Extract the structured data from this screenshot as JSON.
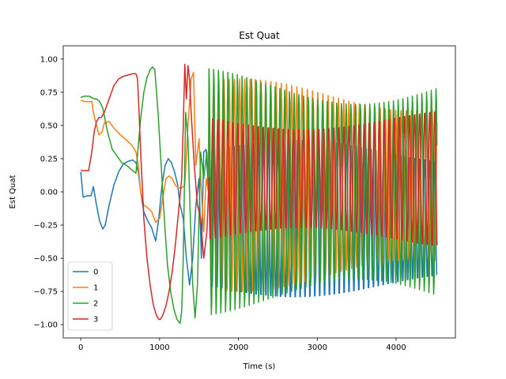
{
  "chart_data": {
    "type": "line",
    "title": "Est Quat",
    "xlabel": "Time (s)",
    "ylabel": "Est Quat",
    "xlim": [
      -222,
      4752
    ],
    "ylim": [
      -1.1,
      1.1
    ],
    "xticks": [
      0,
      1000,
      2000,
      3000,
      4000
    ],
    "xtick_labels": [
      "0",
      "1000",
      "2000",
      "3000",
      "4000"
    ],
    "yticks": [
      -1.0,
      -0.75,
      -0.5,
      -0.25,
      0.0,
      0.25,
      0.5,
      0.75,
      1.0
    ],
    "ytick_labels": [
      "−1.00",
      "−0.75",
      "−0.50",
      "−0.25",
      "0.00",
      "0.25",
      "0.50",
      "0.75",
      "1.00"
    ],
    "grid": false,
    "legend": "lower-left",
    "series": [
      {
        "name": "0",
        "color": "#1f77b4",
        "x": [
          0,
          30,
          80,
          130,
          160,
          200,
          240,
          280,
          310,
          360,
          420,
          480,
          540,
          600,
          660,
          700,
          730,
          760,
          800,
          850,
          900,
          950,
          990,
          1030,
          1070,
          1110,
          1150,
          1190,
          1230,
          1260,
          1300,
          1340,
          1380,
          1420,
          1460,
          1500,
          1530,
          1560,
          1590,
          1620
        ],
        "y": [
          0.15,
          -0.04,
          -0.03,
          -0.03,
          0.04,
          -0.1,
          -0.22,
          -0.28,
          -0.25,
          -0.1,
          0.05,
          0.15,
          0.21,
          0.23,
          0.24,
          0.22,
          0.15,
          0.0,
          -0.15,
          -0.22,
          -0.27,
          -0.37,
          -0.2,
          0.05,
          0.2,
          0.25,
          0.22,
          0.15,
          0.05,
          -0.1,
          -0.2,
          -0.5,
          -0.7,
          -0.5,
          -0.1,
          0.1,
          -0.5,
          0.3,
          0.32,
          0.0
        ],
        "osc": {
          "x_start": 1620,
          "x_end": 4520,
          "period": 62,
          "amplitude": 0.62,
          "center": -0.2,
          "phase": 0.0
        }
      },
      {
        "name": "1",
        "color": "#ff7f0e",
        "x": [
          0,
          50,
          100,
          140,
          160,
          200,
          230,
          270,
          300,
          360,
          420,
          500,
          580,
          650,
          700,
          730,
          760,
          800,
          850,
          900,
          950,
          1000,
          1040,
          1080,
          1120,
          1160,
          1200,
          1240,
          1280,
          1320,
          1360,
          1400,
          1430,
          1460,
          1500,
          1530,
          1560,
          1590,
          1620
        ],
        "y": [
          0.69,
          0.68,
          0.68,
          0.68,
          0.6,
          0.5,
          0.43,
          0.45,
          0.52,
          0.53,
          0.48,
          0.43,
          0.39,
          0.35,
          0.3,
          0.2,
          0.0,
          -0.1,
          -0.12,
          -0.15,
          -0.23,
          -0.2,
          -0.05,
          0.1,
          0.12,
          0.1,
          0.05,
          0.03,
          0.03,
          0.05,
          0.5,
          0.85,
          0.9,
          0.2,
          0.4,
          0.0,
          -0.3,
          0.1,
          0.0
        ],
        "osc": {
          "x_start": 1620,
          "x_end": 4520,
          "period": 66,
          "amplitude": 0.8,
          "center": 0.05,
          "phase": 1.6
        }
      },
      {
        "name": "2",
        "color": "#2ca02c",
        "x": [
          0,
          40,
          80,
          110,
          140,
          170,
          200,
          240,
          280,
          340,
          400,
          460,
          520,
          580,
          640,
          700,
          730,
          760,
          800,
          840,
          880,
          910,
          940,
          980,
          1020,
          1060,
          1100,
          1140,
          1180,
          1220,
          1260,
          1280,
          1300,
          1330,
          1360,
          1390,
          1420,
          1450,
          1480,
          1520,
          1560,
          1600,
          1620
        ],
        "y": [
          0.71,
          0.72,
          0.72,
          0.72,
          0.71,
          0.7,
          0.7,
          0.68,
          0.63,
          0.45,
          0.32,
          0.27,
          0.22,
          0.2,
          0.17,
          0.14,
          0.35,
          0.55,
          0.75,
          0.86,
          0.92,
          0.94,
          0.92,
          0.6,
          0.2,
          -0.2,
          -0.55,
          -0.75,
          -0.88,
          -0.96,
          -0.99,
          -0.9,
          -0.5,
          0.6,
          0.4,
          -0.2,
          -0.7,
          -0.95,
          -0.7,
          0.3,
          0.1,
          0.3,
          0.0
        ],
        "osc": {
          "x_start": 1620,
          "x_end": 4520,
          "period": 60,
          "amplitude": 0.95,
          "center": 0.0,
          "phase": 0.8
        }
      },
      {
        "name": "3",
        "color": "#d62728",
        "x": [
          0,
          50,
          100,
          140,
          170,
          200,
          230,
          260,
          300,
          360,
          420,
          480,
          540,
          600,
          660,
          700,
          720,
          740,
          760,
          800,
          840,
          880,
          920,
          960,
          990,
          1010,
          1040,
          1080,
          1120,
          1160,
          1200,
          1240,
          1280,
          1300,
          1320,
          1340,
          1360,
          1380,
          1400,
          1440,
          1480,
          1520,
          1560,
          1600,
          1620
        ],
        "y": [
          0.16,
          0.16,
          0.16,
          0.3,
          0.45,
          0.53,
          0.56,
          0.56,
          0.6,
          0.7,
          0.8,
          0.85,
          0.87,
          0.88,
          0.89,
          0.89,
          0.85,
          0.6,
          0.3,
          -0.2,
          -0.5,
          -0.7,
          -0.85,
          -0.93,
          -0.96,
          -0.96,
          -0.93,
          -0.86,
          -0.75,
          -0.6,
          -0.4,
          -0.15,
          0.1,
          0.5,
          0.96,
          0.7,
          0.95,
          0.85,
          0.6,
          0.2,
          -0.1,
          -0.2,
          -0.5,
          -0.3,
          0.0
        ],
        "osc": {
          "x_start": 1620,
          "x_end": 4520,
          "period": 64,
          "amplitude": 0.55,
          "center": 0.1,
          "phase": 2.5
        }
      }
    ]
  }
}
